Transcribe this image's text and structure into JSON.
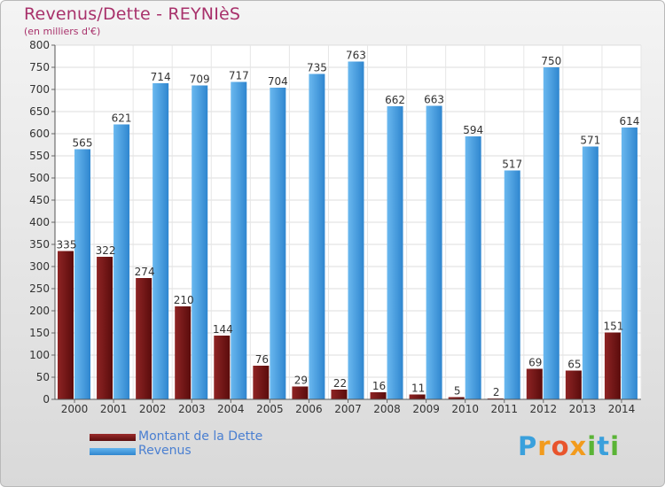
{
  "header": {
    "title": "Revenus/Dette - REYNIèS",
    "subtitle": "(en milliers d'€)"
  },
  "legend": {
    "debt_label": "Montant de la Dette",
    "revenue_label": "Revenus"
  },
  "logo": {
    "text": "Proxiti",
    "letters": [
      "P",
      "r",
      "o",
      "x",
      "i",
      "t",
      "i"
    ],
    "colors": [
      "#3aa0dc",
      "#f29b1d",
      "#e8542c",
      "#f29b1d",
      "#5ab436",
      "#3aa0dc",
      "#5ab436"
    ]
  },
  "colors": {
    "debt_top": "#9b2b2b",
    "debt_bottom": "#5c0d0d",
    "revenue_top": "#63b4ee",
    "revenue_bottom": "#2f86cf",
    "title": "#a8316b",
    "legend_text": "#4a7fd1"
  },
  "chart_data": {
    "type": "bar",
    "title": "Revenus/Dette - REYNIèS",
    "subtitle": "(en milliers d'€)",
    "categories": [
      "2000",
      "2001",
      "2002",
      "2003",
      "2004",
      "2005",
      "2006",
      "2007",
      "2008",
      "2009",
      "2010",
      "2011",
      "2012",
      "2013",
      "2014"
    ],
    "series": [
      {
        "name": "Montant de la Dette",
        "values": [
          335,
          322,
          274,
          210,
          144,
          76,
          29,
          22,
          16,
          11,
          5,
          2,
          69,
          65,
          151
        ]
      },
      {
        "name": "Revenus",
        "values": [
          565,
          621,
          714,
          709,
          717,
          704,
          735,
          763,
          662,
          663,
          594,
          517,
          750,
          571,
          614
        ]
      }
    ],
    "ylim": [
      0,
      800
    ],
    "yticks": [
      0,
      50,
      100,
      150,
      200,
      250,
      300,
      350,
      400,
      450,
      500,
      550,
      600,
      650,
      700,
      750,
      800
    ],
    "grid": true,
    "legend_position": "bottom-left"
  }
}
